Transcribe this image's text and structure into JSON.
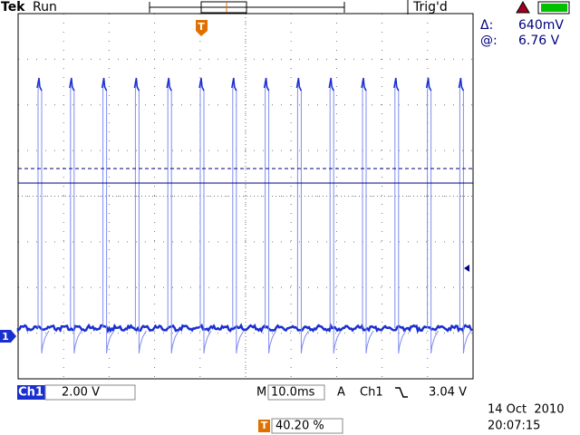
{
  "header": {
    "brand": "Tek",
    "status": "Run",
    "trigger_state": "Trig'd"
  },
  "cursor": {
    "delta_label": "Δ:",
    "delta": "640mV",
    "at_label": "@:",
    "at": "6.76 V"
  },
  "markers": {
    "channel": "1",
    "trigger": "T"
  },
  "footer": {
    "channel": "Ch1",
    "scale": "2.00 V",
    "timebase_label": "M",
    "timebase": "10.0ms",
    "trigger_mode": "A",
    "trigger_source": "Ch1",
    "trigger_level": "3.04 V",
    "trigger_position": "40.20 %",
    "date": "14 Oct  2010",
    "time": "20:07:15"
  }
}
